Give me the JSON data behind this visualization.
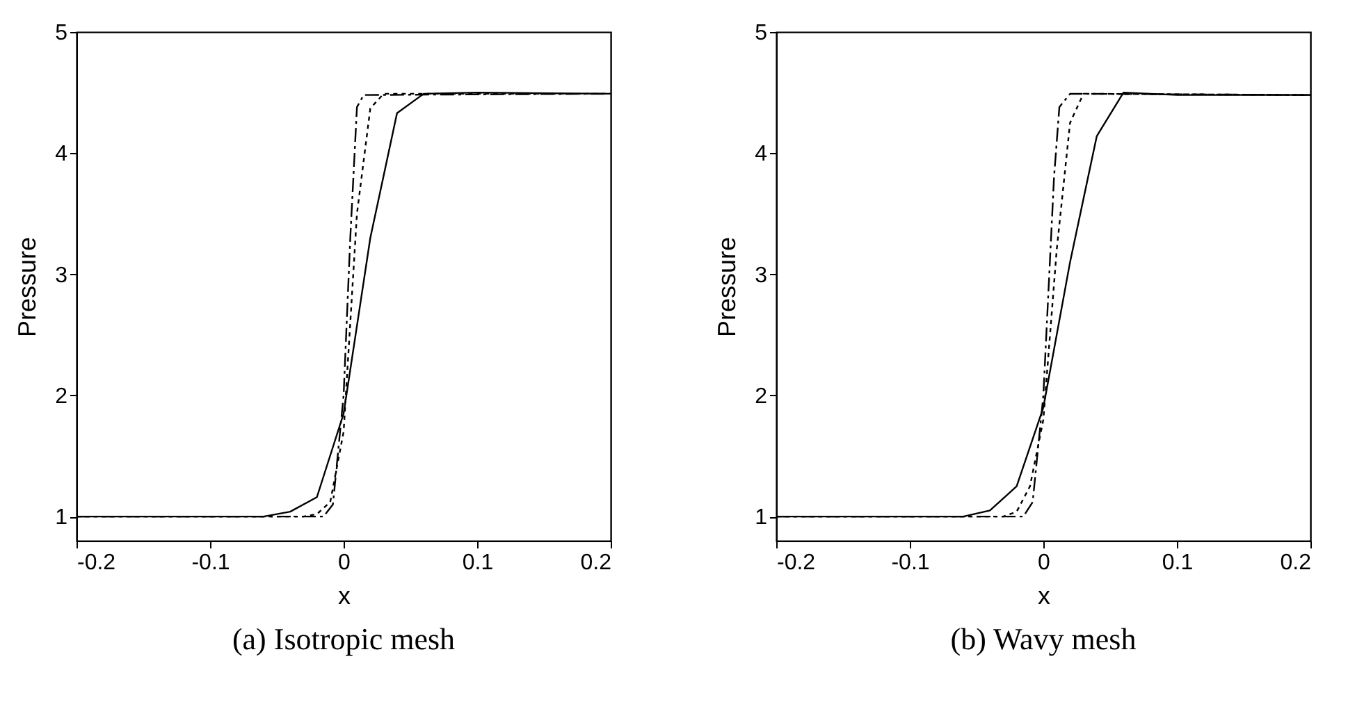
{
  "chart_data": [
    {
      "type": "line",
      "title": "(a) Isotropic mesh",
      "xlabel": "x",
      "ylabel": "Pressure",
      "xlim": [
        -0.2,
        0.2
      ],
      "ylim": [
        0.8,
        5
      ],
      "xticks": [
        -0.2,
        -0.1,
        0,
        0.1,
        0.2
      ],
      "yticks": [
        1,
        2,
        3,
        4,
        5
      ],
      "series": [
        {
          "color": "#000000",
          "line_style": "solid",
          "x": [
            -0.2,
            -0.06,
            -0.04,
            -0.02,
            0,
            0.02,
            0.04,
            0.06,
            0.1,
            0.2
          ],
          "values": [
            1,
            1,
            1.04,
            1.16,
            1.85,
            3.3,
            4.33,
            4.49,
            4.5,
            4.49
          ]
        },
        {
          "color": "#000000",
          "line_style": "dotted",
          "x": [
            -0.2,
            -0.03,
            -0.02,
            -0.01,
            0,
            0.01,
            0.02,
            0.03,
            0.2
          ],
          "values": [
            1,
            1,
            1.02,
            1.12,
            1.7,
            3.5,
            4.37,
            4.49,
            4.49
          ]
        },
        {
          "color": "#000000",
          "line_style": "dashed",
          "x": [
            -0.2,
            -0.015,
            -0.008,
            0,
            0.005,
            0.01,
            0.015,
            0.2
          ],
          "values": [
            1,
            1,
            1.1,
            2.0,
            3.3,
            4.38,
            4.48,
            4.49
          ]
        }
      ]
    },
    {
      "type": "line",
      "title": "(b) Wavy mesh",
      "xlabel": "x",
      "ylabel": "Pressure",
      "xlim": [
        -0.2,
        0.2
      ],
      "ylim": [
        0.8,
        5
      ],
      "xticks": [
        -0.2,
        -0.1,
        0,
        0.1,
        0.2
      ],
      "yticks": [
        1,
        2,
        3,
        4,
        5
      ],
      "series": [
        {
          "color": "#000000",
          "line_style": "solid",
          "x": [
            -0.2,
            -0.06,
            -0.04,
            -0.02,
            0,
            0.02,
            0.04,
            0.06,
            0.1,
            0.2
          ],
          "values": [
            1,
            1,
            1.05,
            1.25,
            1.9,
            3.1,
            4.14,
            4.5,
            4.48,
            4.48
          ]
        },
        {
          "color": "#000000",
          "line_style": "dotted",
          "x": [
            -0.2,
            -0.03,
            -0.02,
            -0.01,
            0,
            0.01,
            0.02,
            0.03,
            0.2
          ],
          "values": [
            1,
            1,
            1.04,
            1.25,
            1.8,
            3.2,
            4.25,
            4.49,
            4.48
          ]
        },
        {
          "color": "#000000",
          "line_style": "dashed",
          "x": [
            -0.2,
            -0.015,
            -0.008,
            0,
            0.008,
            0.012,
            0.02,
            0.2
          ],
          "values": [
            1,
            1,
            1.12,
            2.0,
            3.8,
            4.38,
            4.49,
            4.48
          ]
        }
      ]
    }
  ]
}
